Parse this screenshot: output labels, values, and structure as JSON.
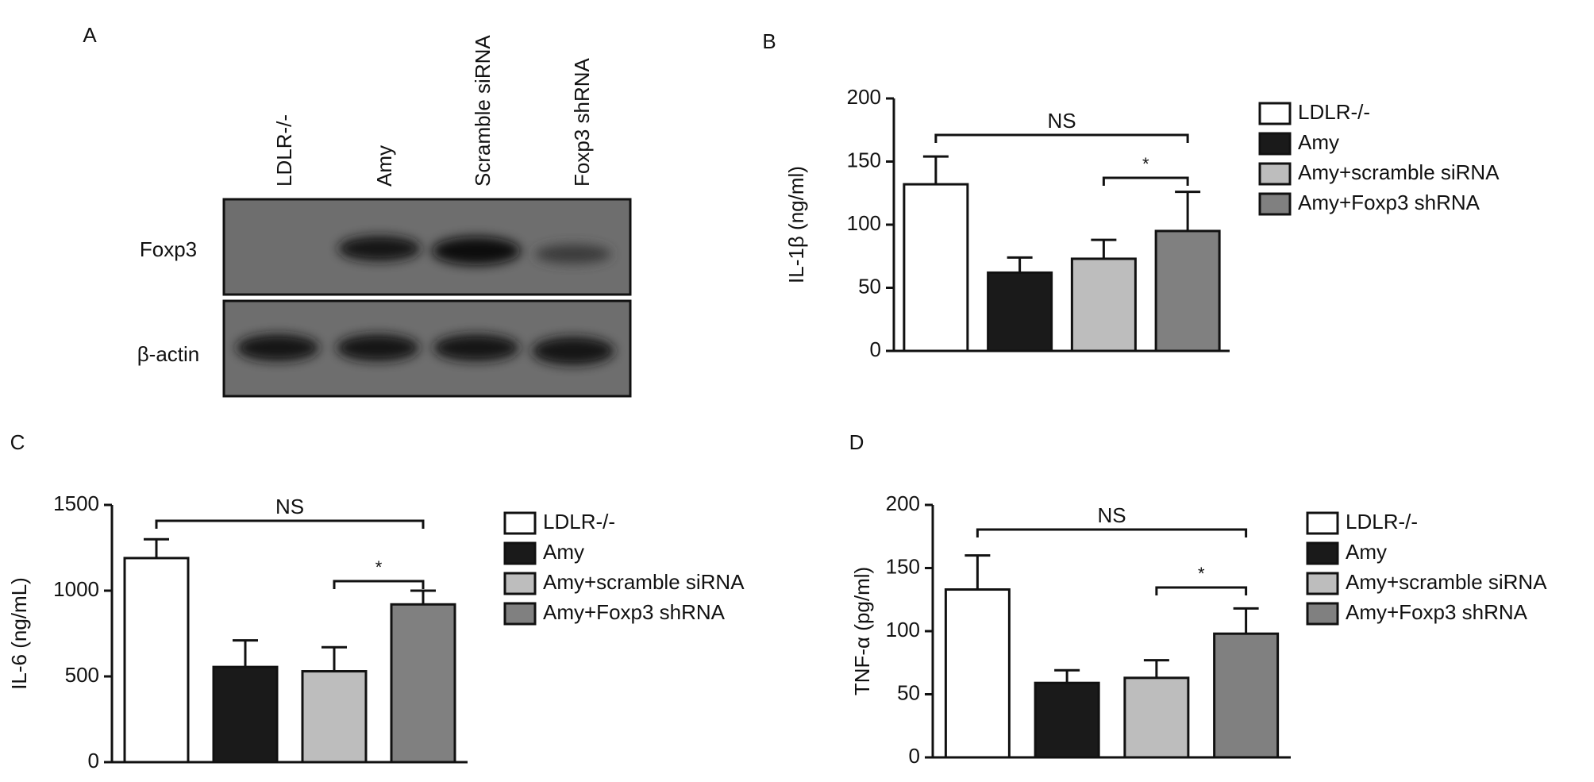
{
  "panel_labels": [
    "A",
    "B",
    "C",
    "D"
  ],
  "blot": {
    "lanes": [
      "LDLR-/-",
      "Amy",
      "Scramble siRNA",
      "Foxp3 shRNA"
    ],
    "rows": [
      "Foxp3",
      "β-actin"
    ]
  },
  "chart_data": [
    {
      "type": "bar",
      "y_label": "IL-1β (ng/ml)",
      "categories": [
        "LDLR-/-",
        "Amy",
        "Amy+scramble siRNA",
        "Amy+Foxp3 shRNA"
      ],
      "colors": [
        "#ffffff",
        "#1a1a1a",
        "#bdbdbd",
        "#808080"
      ],
      "values": [
        132,
        62,
        73,
        95
      ],
      "errors": [
        22,
        12,
        15,
        31
      ],
      "ylim": [
        0,
        200
      ],
      "yticks": [
        0,
        50,
        100,
        150,
        200
      ],
      "annotations": [
        "NS",
        "*"
      ]
    },
    {
      "type": "bar",
      "y_label": "IL-6 (ng/mL)",
      "categories": [
        "LDLR-/-",
        "Amy",
        "Amy+scramble siRNA",
        "Amy+Foxp3 shRNA"
      ],
      "colors": [
        "#ffffff",
        "#1a1a1a",
        "#bdbdbd",
        "#808080"
      ],
      "values": [
        1190,
        555,
        530,
        920
      ],
      "errors": [
        110,
        155,
        140,
        80
      ],
      "ylim": [
        0,
        1500
      ],
      "yticks": [
        0,
        500,
        1000,
        1500
      ],
      "annotations": [
        "NS",
        "*"
      ]
    },
    {
      "type": "bar",
      "y_label": "TNF-α (pg/ml)",
      "categories": [
        "LDLR-/-",
        "Amy",
        "Amy+scramble siRNA",
        "Amy+Foxp3 shRNA"
      ],
      "colors": [
        "#ffffff",
        "#1a1a1a",
        "#bdbdbd",
        "#808080"
      ],
      "values": [
        133,
        59,
        63,
        98
      ],
      "errors": [
        27,
        10,
        14,
        20
      ],
      "ylim": [
        0,
        200
      ],
      "yticks": [
        0,
        50,
        100,
        150,
        200
      ],
      "annotations": [
        "NS",
        "*"
      ]
    }
  ]
}
